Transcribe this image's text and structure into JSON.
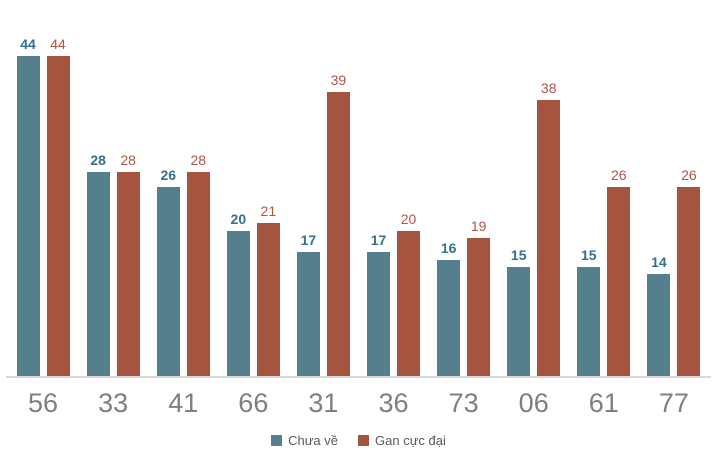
{
  "chart_data": {
    "type": "bar",
    "categories": [
      "56",
      "33",
      "41",
      "66",
      "31",
      "36",
      "73",
      "06",
      "61",
      "77"
    ],
    "series": [
      {
        "name": "Chưa về",
        "color": "#567f8d",
        "label_color": "#35708c",
        "values": [
          44,
          28,
          26,
          20,
          17,
          17,
          16,
          15,
          15,
          14
        ]
      },
      {
        "name": "Gan cực đại",
        "color": "#a5543f",
        "label_color": "#b05546",
        "values": [
          44,
          28,
          28,
          21,
          39,
          20,
          19,
          38,
          26,
          26
        ]
      }
    ],
    "title": "",
    "xlabel": "",
    "ylabel": "",
    "ylim": [
      0,
      44
    ],
    "grid": false,
    "legend_position": "bottom-center",
    "data_labels": true
  },
  "legend": {
    "items": [
      {
        "label": "Chưa về",
        "color": "#567f8d"
      },
      {
        "label": "Gan cực đại",
        "color": "#a5543f"
      }
    ]
  },
  "colors": {
    "series_teal": "#567f8d",
    "series_red": "#a5543f",
    "axis_label": "#7f7f7f",
    "legend_text": "#595959",
    "baseline": "#d9d9d9",
    "background": "#ffffff"
  }
}
